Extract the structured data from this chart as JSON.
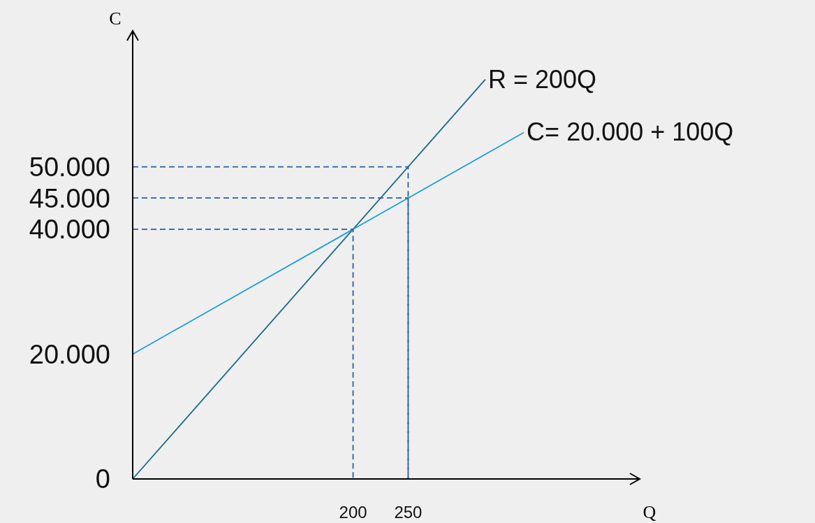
{
  "chart_data": {
    "type": "line",
    "xlabel": "Q",
    "ylabel": "C",
    "xlim": [
      0,
      450
    ],
    "ylim": [
      0,
      70000
    ],
    "xticks": [
      200,
      250
    ],
    "yticks": [
      {
        "value": 0,
        "label": "0"
      },
      {
        "value": 20000,
        "label": "20.000"
      },
      {
        "value": 40000,
        "label": "40.000"
      },
      {
        "value": 45000,
        "label": "45.000"
      },
      {
        "value": 50000,
        "label": "50.000"
      }
    ],
    "legend": false,
    "grid": false,
    "marker": "none",
    "series": [
      {
        "name": "R = 200Q",
        "color": "#1b6a88",
        "x": [
          0,
          200,
          250,
          320
        ],
        "values": [
          0,
          40000,
          50000,
          64000
        ]
      },
      {
        "name": "C= 20.000 + 100Q",
        "color": "#1ca0d8",
        "x": [
          0,
          200,
          250,
          355
        ],
        "values": [
          20000,
          40000,
          45000,
          55500
        ]
      },
      {
        "color": "#2a5e9e",
        "line_style": "dashed",
        "x": [
          0,
          200,
          200
        ],
        "values": [
          40000,
          40000,
          0
        ]
      },
      {
        "color": "#2a5e9e",
        "line_style": "dashed",
        "x": [
          0,
          250,
          250
        ],
        "values": [
          45000,
          45000,
          0
        ]
      },
      {
        "color": "#2a5e9e",
        "line_style": "dashed",
        "x": [
          0,
          250,
          250
        ],
        "values": [
          50000,
          50000,
          0
        ]
      }
    ]
  }
}
